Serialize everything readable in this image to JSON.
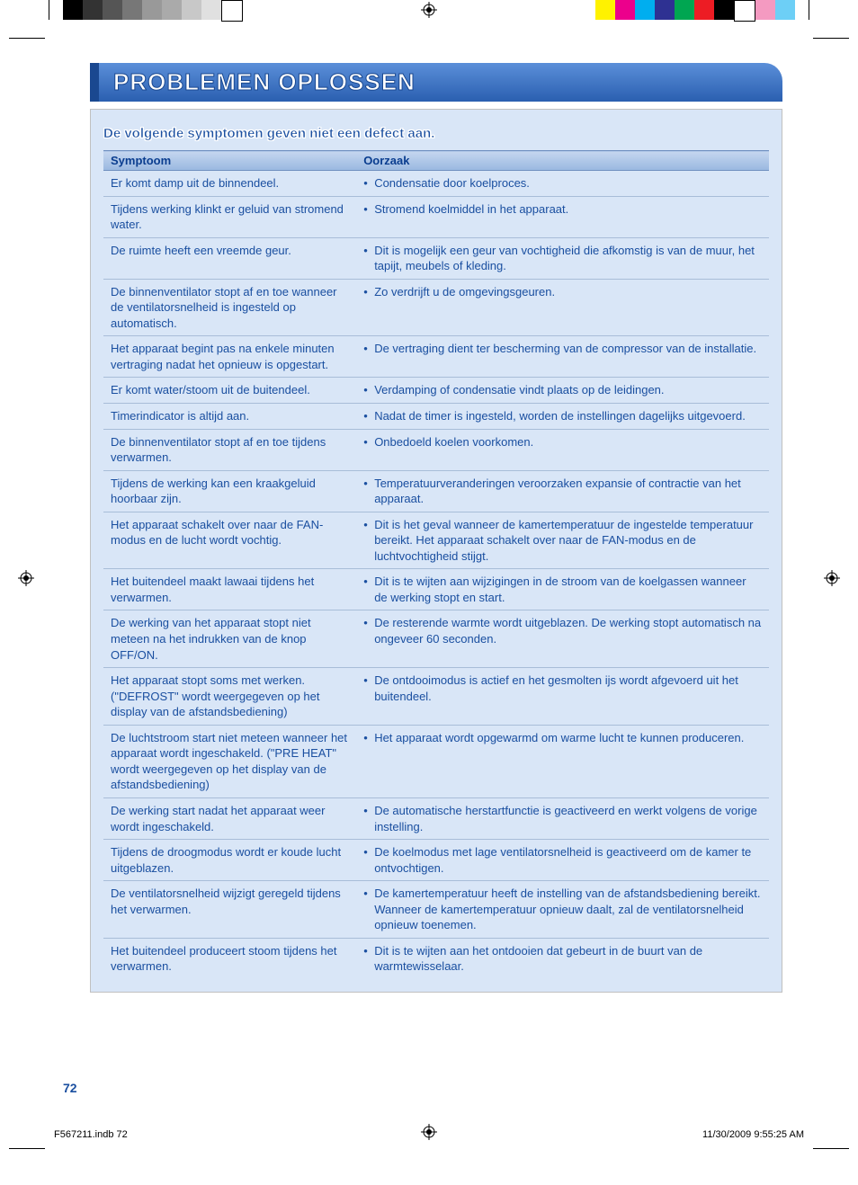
{
  "title": "PROBLEMEN OPLOSSEN",
  "subtitle": "De volgende symptomen geven niet een defect aan.",
  "table": {
    "headers": {
      "symptom": "Symptoom",
      "cause": "Oorzaak"
    },
    "rows": [
      {
        "s": "Er komt damp uit de binnendeel.",
        "c": "Condensatie door koelproces."
      },
      {
        "s": "Tijdens werking klinkt er geluid van stromend water.",
        "c": "Stromend koelmiddel in het apparaat."
      },
      {
        "s": "De ruimte heeft een vreemde geur.",
        "c": "Dit is mogelijk een geur van vochtigheid die afkomstig is van de muur, het tapijt, meubels of kleding."
      },
      {
        "s": "De binnenventilator stopt af en toe wanneer de ventilatorsnelheid is ingesteld op automatisch.",
        "c": "Zo verdrijft u de omgevingsgeuren."
      },
      {
        "s": "Het apparaat begint pas na enkele minuten vertraging nadat het opnieuw is opgestart.",
        "c": "De vertraging dient ter bescherming van de compressor van de installatie."
      },
      {
        "s": "Er komt water/stoom uit de buitendeel.",
        "c": "Verdamping of condensatie vindt plaats op de leidingen."
      },
      {
        "s": "Timerindicator is altijd aan.",
        "c": "Nadat de timer is ingesteld, worden de instellingen dagelijks uitgevoerd."
      },
      {
        "s": "De binnenventilator stopt af en toe tijdens verwarmen.",
        "c": "Onbedoeld koelen voorkomen."
      },
      {
        "s": "Tijdens de werking kan een kraakgeluid hoorbaar zijn.",
        "c": "Temperatuurveranderingen veroorzaken expansie of contractie van het apparaat."
      },
      {
        "s": "Het apparaat schakelt over naar de FAN-modus en de lucht wordt vochtig.",
        "c": "Dit is het geval wanneer de kamertemperatuur de ingestelde temperatuur bereikt. Het apparaat schakelt over naar de FAN-modus en de luchtvochtigheid stijgt."
      },
      {
        "s": "Het buitendeel maakt lawaai tijdens het verwarmen.",
        "c": "Dit is te wijten aan wijzigingen in de stroom van de koelgassen wanneer de werking stopt en start."
      },
      {
        "s": "De werking van het apparaat stopt niet meteen na het indrukken van de knop OFF/ON.",
        "c": "De resterende warmte wordt uitgeblazen. De werking stopt automatisch na ongeveer 60 seconden."
      },
      {
        "s": "Het apparaat stopt soms met werken. (\"DEFROST\" wordt weergegeven op het display van de afstandsbediening)",
        "c": "De ontdooimodus is actief en het gesmolten ijs wordt afgevoerd uit het buitendeel."
      },
      {
        "s": "De luchtstroom start niet meteen wanneer het apparaat wordt ingeschakeld. (\"PRE HEAT\" wordt weergegeven op het display van de afstandsbediening)",
        "c": "Het apparaat wordt opgewarmd om warme lucht te kunnen produceren."
      },
      {
        "s": "De werking start nadat het apparaat weer wordt ingeschakeld.",
        "c": "De automatische herstartfunctie is geactiveerd en werkt volgens de vorige instelling."
      },
      {
        "s": "Tijdens de droogmodus wordt er koude lucht uitgeblazen.",
        "c": "De koelmodus met lage ventilatorsnelheid is geactiveerd om de kamer te ontvochtigen."
      },
      {
        "s": "De ventilatorsnelheid wijzigt geregeld tijdens het verwarmen.",
        "c": "De kamertemperatuur heeft de instelling van de afstandsbediening bereikt. Wanneer de kamertemperatuur opnieuw daalt, zal de ventilatorsnelheid opnieuw toenemen."
      },
      {
        "s": "Het buitendeel produceert stoom tijdens het verwarmen.",
        "c": "Dit is te wijten aan het ontdooien dat gebeurt in de buurt van de warmtewisselaar."
      }
    ]
  },
  "page_number": "72",
  "footer": {
    "file": "F567211.indb   72",
    "datetime": "11/30/2009   9:55:25 AM"
  },
  "colors": {
    "text": "#1a4fa0",
    "banner_grad_top": "#5b8fd9",
    "banner_grad_bot": "#2a5fb0",
    "panel_bg": "#d9e6f7",
    "header_grad_top": "#c5d6ef",
    "header_grad_bot": "#9ab8e0",
    "row_border": "#a8bdd8"
  },
  "colorbars_left": [
    "#000000",
    "#333333",
    "#555555",
    "#777777",
    "#999999",
    "#aaaaaa",
    "#c8c8c8",
    "#e0e0e0",
    "#ffffff"
  ],
  "colorbars_right": [
    "#fff200",
    "#ec008c",
    "#00aeef",
    "#2e3192",
    "#00a651",
    "#ed1c24",
    "#000000",
    "#ffffff",
    "#f49ac1",
    "#6dcff6"
  ]
}
